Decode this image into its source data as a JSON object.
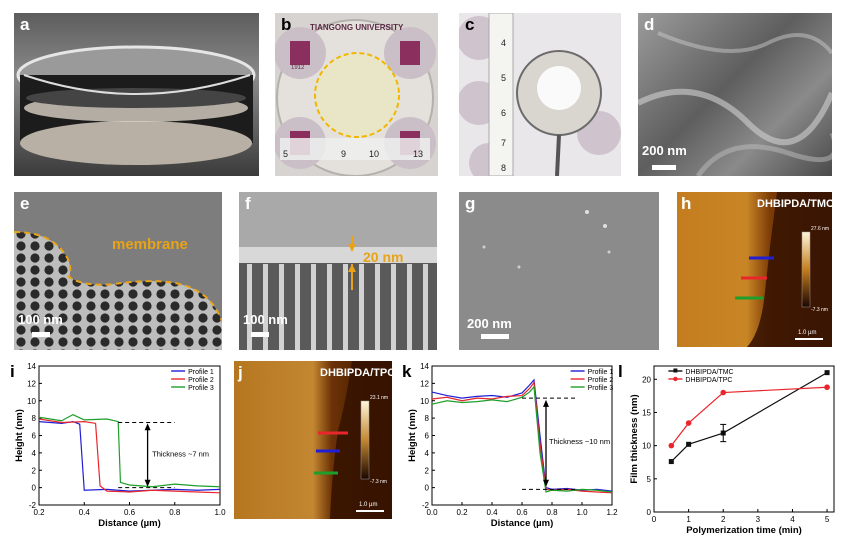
{
  "panels": {
    "a": {
      "label": "a"
    },
    "b": {
      "label": "b",
      "photo_text": [
        "TIANGONG UNIVERSITY",
        "1912",
        "5",
        "9",
        "10",
        "13"
      ]
    },
    "c": {
      "label": "c",
      "ruler_marks": [
        "4",
        "5",
        "6",
        "7",
        "8"
      ]
    },
    "d": {
      "label": "d",
      "scale": "200 nm"
    },
    "e": {
      "label": "e",
      "scale": "100 nm",
      "annotation": "membrane"
    },
    "f": {
      "label": "f",
      "scale": "100 nm",
      "annotation": "20 nm"
    },
    "g": {
      "label": "g",
      "scale": "200 nm"
    },
    "h": {
      "label": "h",
      "title": "DHBIPDA/TMC",
      "cbar_max": "27.6 nm",
      "cbar_min": "-7.3 nm",
      "scale": "1.0 µm"
    },
    "j": {
      "label": "j",
      "title": "DHBIPDA/TPC",
      "cbar_max": "23.1 nm",
      "cbar_min": "-7.3 nm",
      "scale": "1.0 µm"
    },
    "i": {
      "label": "i"
    },
    "k": {
      "label": "k"
    },
    "l": {
      "label": "l"
    }
  },
  "colors": {
    "profile1": "#1f1fd6",
    "profile2": "#e8262b",
    "profile3": "#1e9e2a",
    "tmc": "#111111",
    "tpc": "#e8262b",
    "annot": "#e8a317"
  },
  "chart_data": [
    {
      "id": "i",
      "type": "line",
      "xlabel": "Distance (µm)",
      "ylabel": "Height (nm)",
      "xlim": [
        0.2,
        1.0
      ],
      "ylim": [
        -2,
        14
      ],
      "xticks": [
        "0.2",
        "0.4",
        "0.6",
        "0.8",
        "1.0"
      ],
      "yticks": [
        "-2",
        "0",
        "2",
        "4",
        "6",
        "8",
        "10",
        "12",
        "14"
      ],
      "annotation": "Thickness ~7 nm",
      "series": [
        {
          "name": "Profile 1",
          "x": [
            0.2,
            0.25,
            0.3,
            0.35,
            0.38,
            0.4,
            0.5,
            0.6,
            0.7,
            0.8,
            0.9,
            1.0
          ],
          "y": [
            7.6,
            7.5,
            7.4,
            7.6,
            7.3,
            -0.3,
            -0.2,
            -0.4,
            -0.3,
            -0.2,
            -0.3,
            -0.2
          ]
        },
        {
          "name": "Profile 2",
          "x": [
            0.2,
            0.3,
            0.4,
            0.45,
            0.47,
            0.5,
            0.6,
            0.7,
            0.8,
            0.9,
            1.0
          ],
          "y": [
            7.9,
            7.5,
            7.6,
            7.4,
            0.2,
            -0.4,
            -0.5,
            -0.3,
            -0.4,
            -0.5,
            -0.6
          ]
        },
        {
          "name": "Profile 3",
          "x": [
            0.2,
            0.3,
            0.35,
            0.4,
            0.5,
            0.55,
            0.56,
            0.6,
            0.7,
            0.8,
            0.9,
            1.0
          ],
          "y": [
            8.1,
            7.7,
            8.4,
            7.8,
            7.9,
            7.6,
            0.6,
            0.3,
            0.1,
            0.4,
            0.2,
            0.1
          ]
        }
      ]
    },
    {
      "id": "k",
      "type": "line",
      "xlabel": "Distance (µm)",
      "ylabel": "Height (nm)",
      "xlim": [
        0.0,
        1.2
      ],
      "ylim": [
        -2,
        14
      ],
      "xticks": [
        "0.0",
        "0.2",
        "0.4",
        "0.6",
        "0.8",
        "1.0",
        "1.2"
      ],
      "yticks": [
        "-2",
        "0",
        "2",
        "4",
        "6",
        "8",
        "10",
        "12",
        "14"
      ],
      "annotation": "Thickness ~10 nm",
      "series": [
        {
          "name": "Profile 1",
          "x": [
            0.0,
            0.1,
            0.2,
            0.3,
            0.4,
            0.5,
            0.6,
            0.65,
            0.68,
            0.72,
            0.76,
            0.8,
            0.9,
            1.0,
            1.1,
            1.2
          ],
          "y": [
            11.0,
            10.6,
            10.3,
            10.5,
            10.6,
            10.4,
            10.9,
            11.8,
            12.4,
            6.0,
            0.0,
            -0.2,
            -0.1,
            -0.3,
            -0.2,
            -0.4
          ]
        },
        {
          "name": "Profile 2",
          "x": [
            0.0,
            0.1,
            0.2,
            0.3,
            0.4,
            0.5,
            0.6,
            0.65,
            0.68,
            0.72,
            0.76,
            0.8,
            0.9,
            1.0,
            1.1,
            1.2
          ],
          "y": [
            10.2,
            10.4,
            10.0,
            10.3,
            10.2,
            10.5,
            10.6,
            11.4,
            12.1,
            5.0,
            -0.2,
            -0.3,
            -0.2,
            -0.4,
            -0.5,
            -0.6
          ]
        },
        {
          "name": "Profile 3",
          "x": [
            0.0,
            0.1,
            0.2,
            0.3,
            0.4,
            0.5,
            0.6,
            0.65,
            0.68,
            0.72,
            0.76,
            0.8,
            0.9,
            1.0,
            1.1,
            1.2
          ],
          "y": [
            9.6,
            10.0,
            9.8,
            9.9,
            10.1,
            9.9,
            10.4,
            11.0,
            11.6,
            4.0,
            -0.5,
            -0.3,
            -0.4,
            -0.2,
            -0.3,
            -0.5
          ]
        }
      ]
    },
    {
      "id": "l",
      "type": "line",
      "xlabel": "Polymerization time (min)",
      "ylabel": "Film thickness (nm)",
      "xlim": [
        0,
        5.2
      ],
      "ylim": [
        0,
        22
      ],
      "xticks": [
        "0",
        "1",
        "2",
        "3",
        "4",
        "5"
      ],
      "yticks": [
        "0",
        "5",
        "10",
        "15",
        "20"
      ],
      "series": [
        {
          "name": "DHBIPDA/TMC",
          "x": [
            0.5,
            1,
            2,
            5
          ],
          "y": [
            7.6,
            10.2,
            11.9,
            21.0
          ]
        },
        {
          "name": "DHBIPDA/TPC",
          "x": [
            0.5,
            1,
            2,
            5
          ],
          "y": [
            10.0,
            13.4,
            18.0,
            18.8
          ]
        }
      ]
    }
  ]
}
